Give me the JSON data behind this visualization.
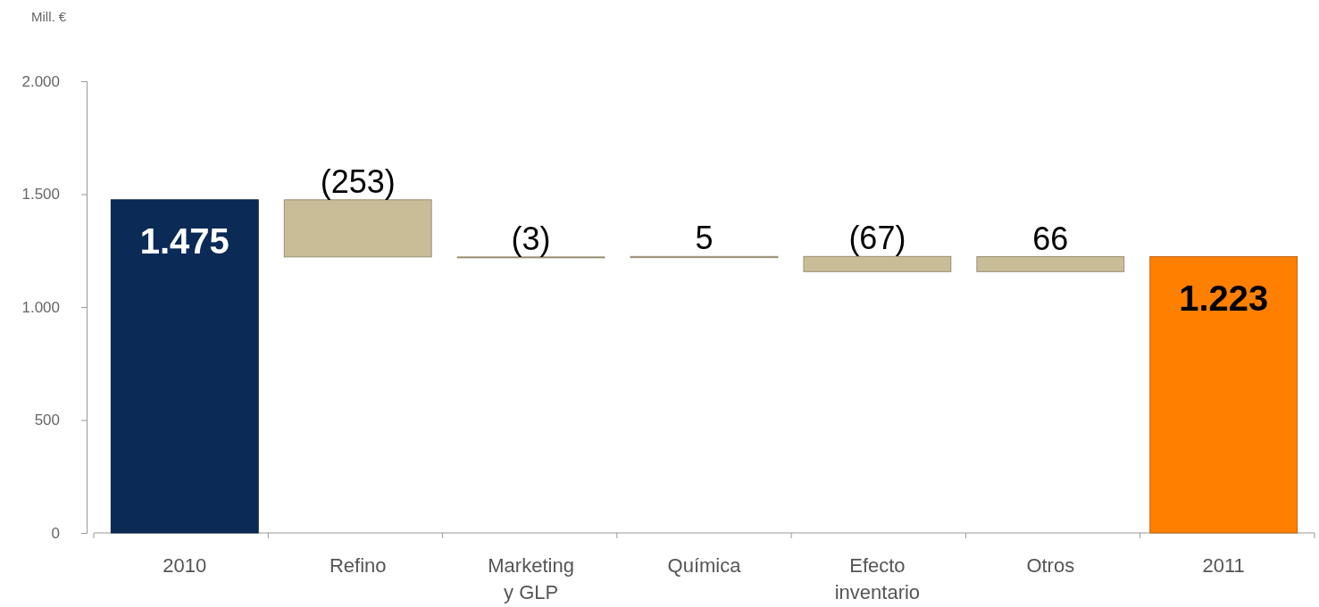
{
  "chart_data": {
    "type": "bar",
    "ylabel": "Mill. €",
    "categories": [
      "2010",
      "Refino",
      "Marketing y GLP",
      "Química",
      "Efecto inventario",
      "Otros",
      "2011"
    ],
    "values": [
      1475,
      -253,
      -3,
      5,
      -67,
      66,
      1223
    ],
    "base": [
      0,
      1475,
      1222,
      1219,
      1224,
      1157,
      0
    ],
    "colors": [
      "#0b2a56",
      "#c9bd98",
      "#c9bd98",
      "#c9bd98",
      "#c9bd98",
      "#c9bd98",
      "#ff8000"
    ],
    "value_labels": [
      "1.475",
      "(253)",
      "(3)",
      "5",
      "(67)",
      "66",
      "1.223"
    ],
    "ylim": [
      0,
      2000
    ],
    "yticks": [
      0,
      {
        "value": 500,
        "label": "500"
      },
      {
        "value": 1000,
        "label": "1.000"
      },
      {
        "value": 1500,
        "label": "1.500"
      },
      {
        "value": 2000,
        "label": "2.000"
      }
    ]
  }
}
